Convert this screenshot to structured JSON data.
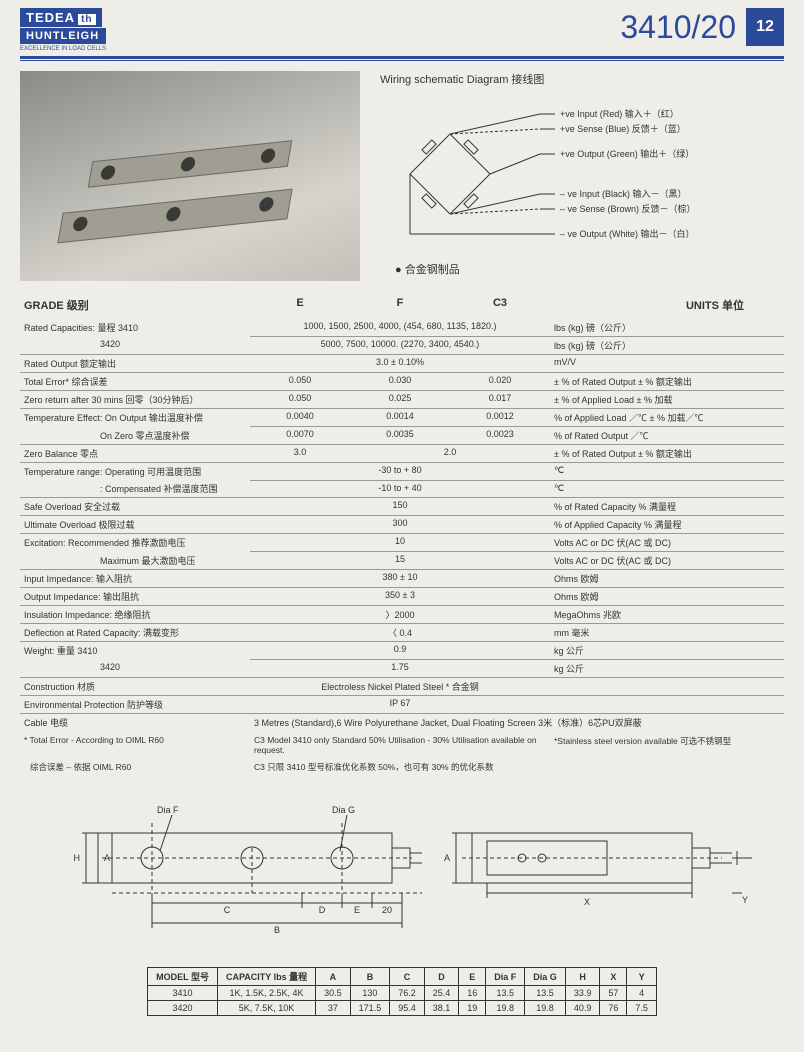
{
  "header": {
    "brand1": "TEDEA",
    "brand_th": "th",
    "brand2": "HUNTLEIGH",
    "tagline": "EXCELLENCE IN LOAD CELLS",
    "model": "3410/20",
    "page_num": "12"
  },
  "wiring": {
    "title": "Wiring schematic Diagram 接线图",
    "labels": [
      "+ve Input (Red) 输入＋（红）",
      "+ve Sense (Blue) 反馈＋（蓝）",
      "+ve Output (Green) 输出＋（绿）",
      "– ve Input (Black) 输入－（黑）",
      "– ve Sense (Brown) 反馈－（棕）",
      "– ve Output (White) 输出－（白）"
    ],
    "alloy_note": "● 合金钢制品",
    "line_color": "#333333",
    "resistor_fill": "#efede8"
  },
  "spec": {
    "hdr_grade": "GRADE 级别",
    "hdr_e": "E",
    "hdr_f": "F",
    "hdr_c3": "C3",
    "hdr_units": "UNITS 单位",
    "rows": [
      {
        "p": "Rated Capacities: 量程 3410",
        "efc": "1000, 1500, 2500, 4000, (454, 680, 1135, 1820.)",
        "u": "lbs (kg) 磅（公斤）"
      },
      {
        "p": "3420",
        "efc": "5000, 7500, 10000. (2270, 3400, 4540.)",
        "u": "lbs (kg) 磅（公斤）",
        "indent": true
      },
      {
        "p": "Rated Output 额定输出",
        "efc": "3.0 ± 0.10%",
        "u": "mV/V"
      },
      {
        "p": "Total Error* 综合误差",
        "e": "0.050",
        "f": "0.030",
        "c3": "0.020",
        "u": "± % of Rated Output  ± % 额定输出"
      },
      {
        "p": "Zero return after 30 mins  回零（30分钟后）",
        "e": "0.050",
        "f": "0.025",
        "c3": "0.017",
        "u": "± % of Applied Load  ±  % 加载"
      },
      {
        "p": "Temperature Effect: On Output  输出温度补偿",
        "e": "0.0040",
        "f": "0.0014",
        "c3": "0.0012",
        "u": "% of Applied Load ／℃  ±  % 加载／℃"
      },
      {
        "p": "On Zero   零点温度补偿",
        "e": "0.0070",
        "f": "0.0035",
        "c3": "0.0023",
        "u": "% of Rated Output ／℃",
        "indent": true
      },
      {
        "p": "Zero Balance 零点",
        "e": "3.0",
        "fc3": "2.0",
        "u": "± % of Rated Output  ±  % 额定输出"
      },
      {
        "p": "Temperature range: Operating 可用温度范围",
        "efc": "-30 to + 80",
        "u": "℃"
      },
      {
        "p": ": Compensated 补偿温度范围",
        "efc": "-10 to + 40",
        "u": "℃",
        "indent": true
      },
      {
        "p": "Safe Overload  安全过载",
        "efc": "150",
        "u": "% of Rated Capacity  % 满量程"
      },
      {
        "p": "Ultimate Overload 极限过载",
        "efc": "300",
        "u": "% of Applied Capacity  % 满量程"
      },
      {
        "p": "Excitation: Recommended  推荐激励电压",
        "efc": "10",
        "u": "Volts AC or DC 伏(AC 或 DC)"
      },
      {
        "p": "Maximum 最大激励电压",
        "efc": "15",
        "u": "Volts AC or DC 伏(AC 或 DC)",
        "indent": true
      },
      {
        "p": "Input Impedance:  输入阻抗",
        "efc": "380 ± 10",
        "u": "Ohms 欧姆"
      },
      {
        "p": "Output Impedance:  输出阻抗",
        "efc": "350 ± 3",
        "u": "Ohms 欧姆"
      },
      {
        "p": "Insulation Impedance: 绝缘阻抗",
        "efc": "〉2000",
        "u": "MegaOhms  兆欧"
      },
      {
        "p": "Deflection at Rated Capacity:  满载变形",
        "efc": "〈 0.4",
        "u": "mm 毫米"
      },
      {
        "p": "Weight: 重量 3410",
        "efc": "0.9",
        "u": "kg 公斤"
      },
      {
        "p": "3420",
        "efc": "1.75",
        "u": "kg 公斤",
        "indent": true
      },
      {
        "p": "Construction   材质",
        "efc": "Electroless Nickel Plated Steel * 合金钢",
        "u": ""
      },
      {
        "p": "Environmental Protection  防护等级",
        "efc": "IP 67",
        "u": ""
      },
      {
        "p": "Cable  电缆",
        "full": "3 Metres  (Standard),6 Wire Polyurethane Jacket, Dual Floating Screen    3米（标准）6芯PU双屏蔽"
      }
    ],
    "note1a": "*  Total Error - According to OIML R60",
    "note1b": "C3 Model 3410 only Standard 50% Utilisation - 30% Utilisation available on request.",
    "note1c": "*Stainless steel version available   可选不锈钢型",
    "note2a": "综合误差 – 依据 OIML R60",
    "note2b": "C3 只限 3410 型号标准优化系数 50%，也可有 30% 的优化系数"
  },
  "drawing": {
    "diaF": "Dia F",
    "diaG": "Dia G",
    "A": "A",
    "B": "B",
    "C": "C",
    "D": "D",
    "E": "E",
    "H": "H",
    "X": "X",
    "Y": "Y",
    "twenty": "20",
    "line_color": "#333333",
    "dash": "4,3"
  },
  "dim_table": {
    "headers": [
      "MODEL 型号",
      "CAPACITY lbs 量程",
      "A",
      "B",
      "C",
      "D",
      "E",
      "Dia F",
      "Dia G",
      "H",
      "X",
      "Y"
    ],
    "rows": [
      [
        "3410",
        "1K, 1.5K, 2.5K, 4K",
        "30.5",
        "130",
        "76.2",
        "25.4",
        "16",
        "13.5",
        "13.5",
        "33.9",
        "57",
        "4"
      ],
      [
        "3420",
        "5K, 7.5K, 10K",
        "37",
        "171.5",
        "95.4",
        "38.1",
        "19",
        "19.8",
        "19.8",
        "40.9",
        "76",
        "7.5"
      ]
    ]
  }
}
